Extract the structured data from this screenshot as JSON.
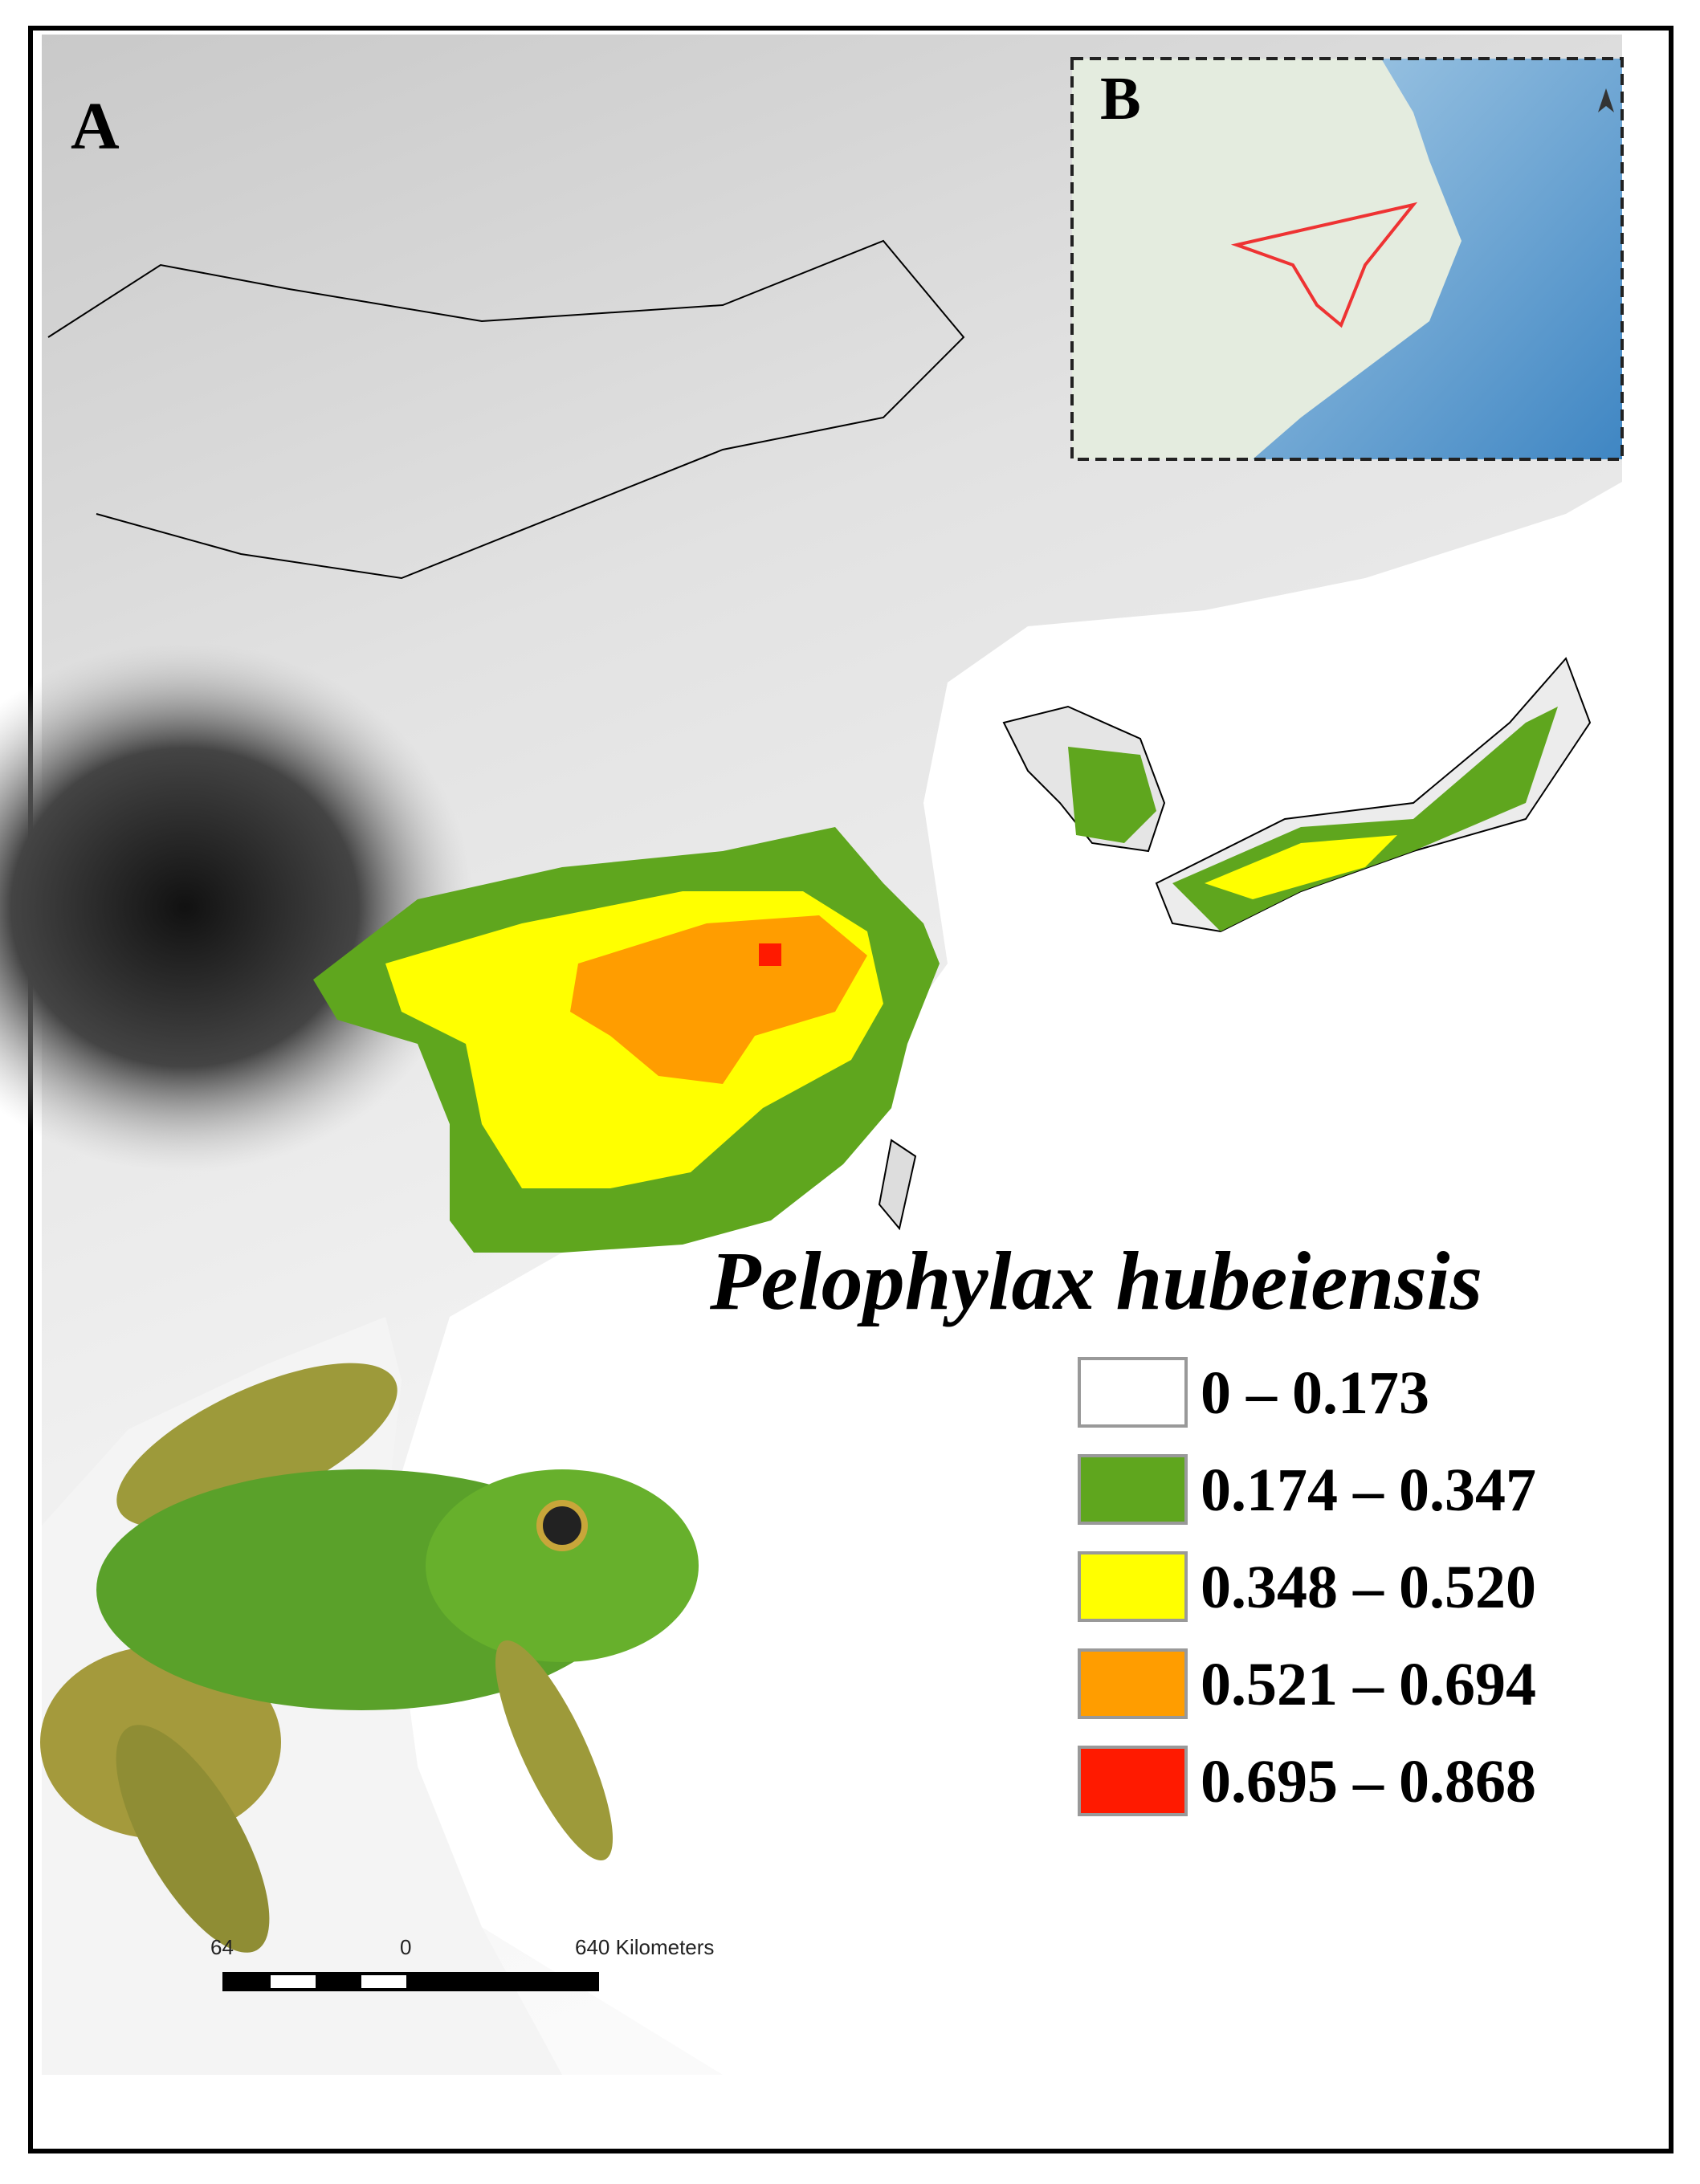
{
  "panels": {
    "main": "A",
    "inset": "B"
  },
  "species": "Pelophylax hubeiensis",
  "legend": {
    "items": [
      {
        "label": "0 – 0.173",
        "color": "#ffffff"
      },
      {
        "label": "0.174 – 0.347",
        "color": "#5fa61e"
      },
      {
        "label": "0.348 – 0.520",
        "color": "#ffff00"
      },
      {
        "label": "0.521 – 0.694",
        "color": "#ff9d00"
      },
      {
        "label": "0.695 – 0.868",
        "color": "#ff1a00"
      }
    ]
  },
  "scale_bar": {
    "labels": [
      "64",
      "0",
      "640 Kilometers"
    ]
  }
}
